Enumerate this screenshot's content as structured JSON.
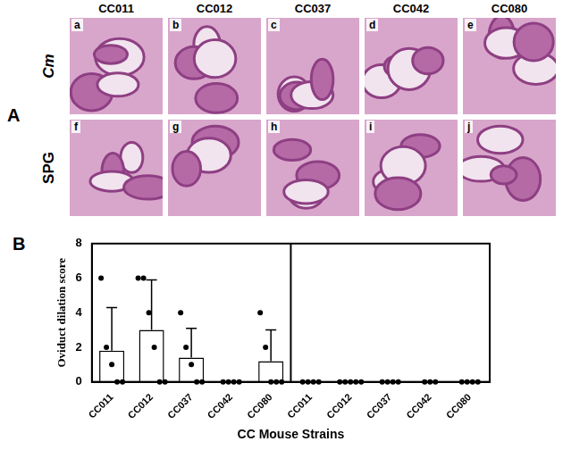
{
  "figure": {
    "panel_a": {
      "label": "A",
      "columns": [
        "CC011",
        "CC012",
        "CC037",
        "CC042",
        "CC080"
      ],
      "rows": [
        {
          "label": "Cm",
          "panels": [
            "a",
            "b",
            "c",
            "d",
            "e"
          ]
        },
        {
          "label": "SPG",
          "panels": [
            "f",
            "g",
            "h",
            "i",
            "j"
          ]
        }
      ]
    },
    "panel_b_label": "B"
  },
  "chart_data": {
    "type": "bar",
    "x_label": "CC Mouse Strains",
    "y_label": "Oviduct dilation score",
    "categories": [
      "CC011",
      "CC012",
      "CC037",
      "CC042",
      "CC080",
      "CC011",
      "CC012",
      "CC037",
      "CC042",
      "CC080"
    ],
    "values": [
      1.8,
      3.0,
      1.4,
      0,
      1.2,
      0,
      0,
      0,
      0,
      0
    ],
    "errors": [
      2.5,
      2.9,
      1.7,
      0,
      1.8,
      0,
      0,
      0,
      0,
      0
    ],
    "points": [
      [
        6,
        2,
        1,
        0,
        0
      ],
      [
        6,
        6,
        4,
        2,
        0,
        0
      ],
      [
        4,
        2,
        1,
        0,
        0
      ],
      [
        0,
        0,
        0,
        0
      ],
      [
        4,
        2,
        0,
        0,
        0
      ],
      [
        0,
        0,
        0,
        0
      ],
      [
        0,
        0,
        0,
        0,
        0
      ],
      [
        0,
        0,
        0,
        0
      ],
      [
        0,
        0,
        0
      ],
      [
        0,
        0,
        0,
        0
      ]
    ],
    "color": "#ffffff",
    "ylim": [
      0,
      8
    ],
    "yticks": [
      0,
      2,
      4,
      6,
      8
    ],
    "grid": false
  }
}
